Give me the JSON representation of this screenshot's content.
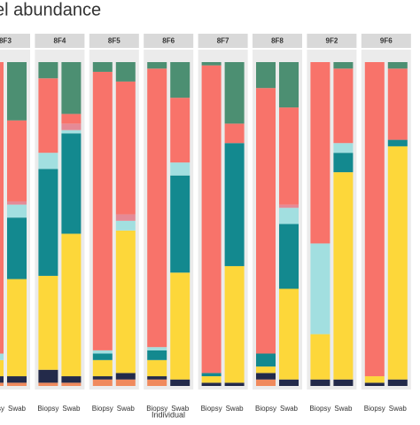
{
  "chart_data": {
    "type": "stacked_bar",
    "title": "el abundance",
    "x_label": "Individual",
    "facets": [
      "8F3",
      "8F4",
      "8F5",
      "8F6",
      "8F7",
      "8F8",
      "9F2",
      "9F6"
    ],
    "categories": [
      "Biopsy",
      "Swab"
    ],
    "ylim": [
      0,
      1
    ],
    "series": [
      {
        "color": "#f08a5d",
        "values": [
          [
            0.01,
            0.01
          ],
          [
            0.01,
            0.01
          ],
          [
            0.02,
            0.02
          ],
          [
            0.02,
            0.0
          ],
          [
            0.0,
            0.0
          ],
          [
            0.02,
            0.0
          ],
          [
            0.0,
            0.0
          ],
          [
            0.0,
            0.0
          ]
        ]
      },
      {
        "color": "#232a4a",
        "values": [
          [
            0.02,
            0.02
          ],
          [
            0.04,
            0.02
          ],
          [
            0.01,
            0.02
          ],
          [
            0.01,
            0.02
          ],
          [
            0.01,
            0.01
          ],
          [
            0.02,
            0.02
          ],
          [
            0.02,
            0.02
          ],
          [
            0.01,
            0.02
          ]
        ]
      },
      {
        "color": "#fdd73a",
        "values": [
          [
            0.05,
            0.3
          ],
          [
            0.29,
            0.44
          ],
          [
            0.05,
            0.44
          ],
          [
            0.05,
            0.33
          ],
          [
            0.02,
            0.36
          ],
          [
            0.02,
            0.28
          ],
          [
            0.14,
            0.64
          ],
          [
            0.02,
            0.72
          ]
        ]
      },
      {
        "color": "#13898f",
        "values": [
          [
            0.0,
            0.19
          ],
          [
            0.33,
            0.31
          ],
          [
            0.02,
            0.0
          ],
          [
            0.03,
            0.3
          ],
          [
            0.01,
            0.38
          ],
          [
            0.04,
            0.2
          ],
          [
            0.0,
            0.06
          ],
          [
            0.0,
            0.02
          ]
        ]
      },
      {
        "color": "#a2dfe0",
        "values": [
          [
            0.02,
            0.04
          ],
          [
            0.05,
            0.01
          ],
          [
            0.01,
            0.03
          ],
          [
            0.01,
            0.04
          ],
          [
            0.0,
            0.0
          ],
          [
            0.0,
            0.05
          ],
          [
            0.28,
            0.03
          ],
          [
            0.0,
            0.0
          ]
        ]
      },
      {
        "color": "#e58a96",
        "values": [
          [
            0.0,
            0.01
          ],
          [
            0.0,
            0.02
          ],
          [
            0.0,
            0.02
          ],
          [
            0.0,
            0.0
          ],
          [
            0.0,
            0.0
          ],
          [
            0.0,
            0.01
          ],
          [
            0.0,
            0.0
          ],
          [
            0.0,
            0.0
          ]
        ]
      },
      {
        "color": "#f8736a",
        "values": [
          [
            0.9,
            0.25
          ],
          [
            0.23,
            0.03
          ],
          [
            0.86,
            0.41
          ],
          [
            0.86,
            0.2
          ],
          [
            0.95,
            0.06
          ],
          [
            0.82,
            0.3
          ],
          [
            0.56,
            0.23
          ],
          [
            0.97,
            0.22
          ]
        ]
      },
      {
        "color": "#4c8f72",
        "values": [
          [
            0.0,
            0.18
          ],
          [
            0.05,
            0.16
          ],
          [
            0.03,
            0.06
          ],
          [
            0.02,
            0.11
          ],
          [
            0.01,
            0.19
          ],
          [
            0.08,
            0.14
          ],
          [
            0.0,
            0.02
          ],
          [
            0.0,
            0.02
          ]
        ]
      }
    ]
  }
}
